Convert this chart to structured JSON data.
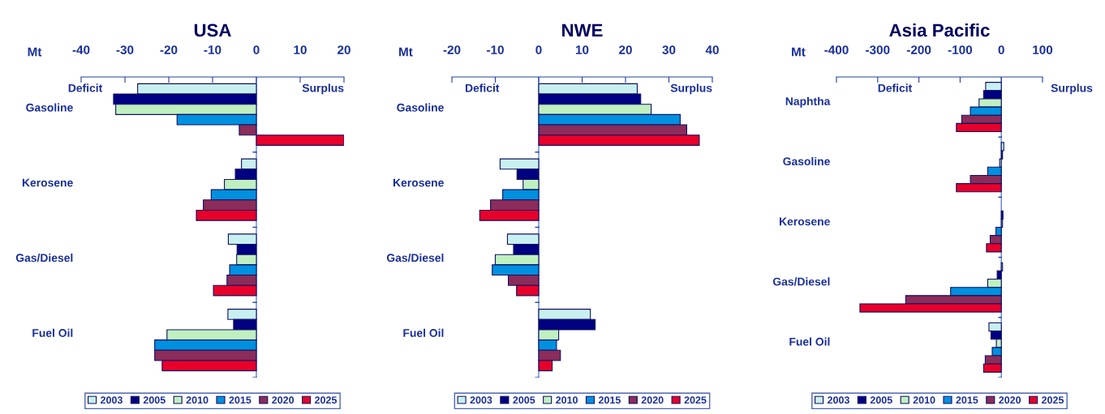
{
  "chart_data": [
    {
      "type": "bar",
      "orientation": "horizontal",
      "title": "USA",
      "ref_lines": [
        {
          "axis": "x",
          "value": 0,
          "color": "#6080d0"
        }
      ],
      "categories": [
        "Gasoline",
        "Kerosene",
        "Gas/Diesel",
        "Fuel Oil"
      ],
      "annotations": [
        "Mt",
        "Deficit",
        "Surplus"
      ],
      "xlim": [
        -40,
        20
      ],
      "xticks": [
        -40,
        -30,
        -20,
        -10,
        0,
        10,
        20
      ],
      "legend": "bottom",
      "grid": false,
      "series": [
        {
          "name": "2003",
          "color": "#c8f0f0",
          "values": [
            -27.1,
            -3.4,
            -6.4,
            -6.5
          ]
        },
        {
          "name": "2005",
          "color": "#000080",
          "values": [
            -32.6,
            -4.8,
            -4.4,
            -5.2
          ]
        },
        {
          "name": "2010",
          "color": "#c0f0c0",
          "values": [
            -32.1,
            -7.3,
            -4.5,
            -20.4
          ]
        },
        {
          "name": "2015",
          "color": "#0090e0",
          "values": [
            -18.1,
            -10.3,
            -6.1,
            -23.2
          ]
        },
        {
          "name": "2020",
          "color": "#8b2c5a",
          "values": [
            -3.9,
            -12.1,
            -6.7,
            -23.2
          ]
        },
        {
          "name": "2025",
          "color": "#e8002a",
          "values": [
            20,
            -13.7,
            -9.8,
            -21.5
          ]
        }
      ]
    },
    {
      "type": "bar",
      "orientation": "horizontal",
      "title": "NWE",
      "ref_lines": [
        {
          "axis": "x",
          "value": 0,
          "color": "#6080d0"
        }
      ],
      "categories": [
        "Gasoline",
        "Kerosene",
        "Gas/Diesel",
        "Fuel Oil"
      ],
      "annotations": [
        "Mt",
        "Deficit",
        "Surplus"
      ],
      "xlim": [
        -20,
        40
      ],
      "xticks": [
        -20,
        -10,
        0,
        10,
        20,
        30,
        40
      ],
      "legend": "bottom",
      "grid": false,
      "series": [
        {
          "name": "2003",
          "color": "#c8f0f0",
          "values": [
            22.7,
            -8.9,
            -7.2,
            11.9
          ]
        },
        {
          "name": "2005",
          "color": "#000080",
          "values": [
            23.5,
            -5.0,
            -5.8,
            13.0
          ]
        },
        {
          "name": "2010",
          "color": "#c0f0c0",
          "values": [
            25.9,
            -3.6,
            -10.0,
            4.6
          ]
        },
        {
          "name": "2015",
          "color": "#0090e0",
          "values": [
            32.6,
            -8.3,
            -10.7,
            4.1
          ]
        },
        {
          "name": "2020",
          "color": "#8b2c5a",
          "values": [
            34.1,
            -11.1,
            -7.0,
            5.0
          ]
        },
        {
          "name": "2025",
          "color": "#e8002a",
          "values": [
            37.0,
            -13.6,
            -5.1,
            3.1
          ]
        }
      ]
    },
    {
      "type": "bar",
      "orientation": "horizontal",
      "title": "Asia Pacific",
      "ref_lines": [
        {
          "axis": "x",
          "value": 0,
          "color": "#6080d0"
        }
      ],
      "categories": [
        "Naphtha",
        "Gasoline",
        "Kerosene",
        "Gas/Diesel",
        "Fuel Oil"
      ],
      "annotations": [
        "Mt",
        "Deficit",
        "Surplus"
      ],
      "xlim": [
        -400,
        100
      ],
      "xticks": [
        -400,
        -300,
        -200,
        -100,
        0,
        100
      ],
      "legend": "bottom",
      "grid": false,
      "series": [
        {
          "name": "2003",
          "color": "#c8f0f0",
          "values": [
            -38,
            6,
            null,
            3,
            -30
          ]
        },
        {
          "name": "2005",
          "color": "#000080",
          "values": [
            -43,
            3,
            4,
            -10,
            -25
          ]
        },
        {
          "name": "2010",
          "color": "#c0f0c0",
          "values": [
            -54,
            -4,
            3,
            -33,
            -12
          ]
        },
        {
          "name": "2015",
          "color": "#0090e0",
          "values": [
            -75,
            -33,
            -13,
            -123,
            -22
          ]
        },
        {
          "name": "2020",
          "color": "#8b2c5a",
          "values": [
            -96,
            -75,
            -27,
            -232,
            -39
          ]
        },
        {
          "name": "2025",
          "color": "#e8002a",
          "values": [
            -109,
            -109,
            -36,
            -343,
            -43
          ]
        }
      ]
    }
  ]
}
